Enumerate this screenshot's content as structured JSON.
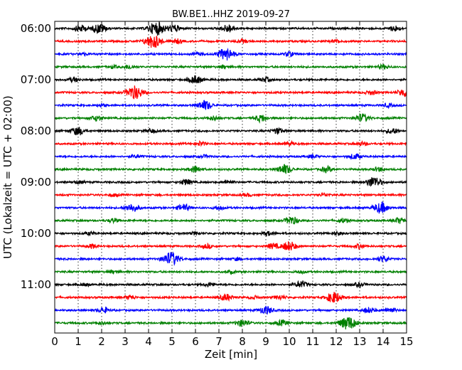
{
  "chart_data": {
    "type": "line",
    "title": "BW.BE1..HHZ 2019-09-27",
    "xlabel": "Zeit  [min]",
    "ylabel": "UTC (Lokalzeit = UTC + 02:00)",
    "xlim": [
      0,
      15
    ],
    "x_ticks": [
      "0",
      "1",
      "2",
      "3",
      "4",
      "5",
      "6",
      "7",
      "8",
      "9",
      "10",
      "11",
      "12",
      "13",
      "14",
      "15"
    ],
    "y_tick_labels": [
      "06:00",
      "07:00",
      "08:00",
      "09:00",
      "10:00",
      "11:00"
    ],
    "y_tick_trace_index": [
      0,
      4,
      8,
      12,
      16,
      20
    ],
    "grid": "vertical dotted",
    "series_colors": [
      "#000000",
      "#ff0000",
      "#0000ff",
      "#008000"
    ],
    "trace_interval_minutes": 15,
    "start_time": "06:00",
    "traces": [
      {
        "start": "06:00",
        "color": "#000000",
        "events": [
          [
            1.1,
            0.5
          ],
          [
            1.9,
            0.7
          ],
          [
            4.35,
            1.0
          ],
          [
            5.1,
            0.5
          ],
          [
            7.4,
            0.6
          ],
          [
            14.5,
            0.4
          ]
        ]
      },
      {
        "start": "06:15",
        "color": "#ff0000",
        "events": [
          [
            4.2,
            1.0
          ],
          [
            5.2,
            0.3
          ],
          [
            8.0,
            0.25
          ],
          [
            12.0,
            0.25
          ]
        ]
      },
      {
        "start": "06:30",
        "color": "#0000ff",
        "events": [
          [
            1.2,
            0.2
          ],
          [
            6.1,
            0.2
          ],
          [
            7.3,
            0.9
          ],
          [
            10.0,
            0.3
          ]
        ]
      },
      {
        "start": "06:45",
        "color": "#008000",
        "events": [
          [
            2.5,
            0.2
          ],
          [
            3.2,
            0.3
          ],
          [
            7.2,
            0.2
          ],
          [
            14.0,
            0.3
          ]
        ]
      },
      {
        "start": "07:00",
        "color": "#000000",
        "events": [
          [
            0.8,
            0.3
          ],
          [
            6.0,
            0.6
          ],
          [
            9.0,
            0.3
          ]
        ]
      },
      {
        "start": "07:15",
        "color": "#ff0000",
        "events": [
          [
            3.4,
            1.0
          ],
          [
            13.5,
            0.3
          ],
          [
            14.9,
            0.6
          ]
        ]
      },
      {
        "start": "07:30",
        "color": "#0000ff",
        "events": [
          [
            2.0,
            0.2
          ],
          [
            6.4,
            0.7
          ],
          [
            14.2,
            0.25
          ]
        ]
      },
      {
        "start": "07:45",
        "color": "#008000",
        "events": [
          [
            1.8,
            0.4
          ],
          [
            6.8,
            0.3
          ],
          [
            8.8,
            0.5
          ],
          [
            13.1,
            0.6
          ]
        ]
      },
      {
        "start": "08:00",
        "color": "#000000",
        "events": [
          [
            1.0,
            0.6
          ],
          [
            4.1,
            0.3
          ],
          [
            9.5,
            0.4
          ],
          [
            14.4,
            0.4
          ]
        ]
      },
      {
        "start": "08:15",
        "color": "#ff0000",
        "events": [
          [
            6.2,
            0.3
          ],
          [
            10.0,
            0.25
          ],
          [
            13.1,
            0.25
          ]
        ]
      },
      {
        "start": "08:30",
        "color": "#0000ff",
        "events": [
          [
            3.5,
            0.2
          ],
          [
            6.4,
            0.2
          ],
          [
            11.0,
            0.25
          ],
          [
            12.8,
            0.4
          ]
        ]
      },
      {
        "start": "08:45",
        "color": "#008000",
        "events": [
          [
            6.0,
            0.5
          ],
          [
            9.8,
            0.7
          ],
          [
            11.6,
            0.4
          ],
          [
            13.8,
            0.3
          ]
        ]
      },
      {
        "start": "09:00",
        "color": "#000000",
        "events": [
          [
            1.0,
            0.2
          ],
          [
            5.6,
            0.4
          ],
          [
            7.4,
            0.3
          ],
          [
            13.6,
            0.8
          ]
        ]
      },
      {
        "start": "09:15",
        "color": "#ff0000",
        "events": [
          [
            2.5,
            0.2
          ],
          [
            8.2,
            0.2
          ],
          [
            11.5,
            0.2
          ]
        ]
      },
      {
        "start": "09:30",
        "color": "#0000ff",
        "events": [
          [
            3.3,
            0.6
          ],
          [
            5.5,
            0.5
          ],
          [
            7.0,
            0.3
          ],
          [
            13.9,
            0.8
          ]
        ]
      },
      {
        "start": "09:45",
        "color": "#008000",
        "events": [
          [
            2.5,
            0.3
          ],
          [
            10.1,
            0.6
          ],
          [
            12.3,
            0.3
          ],
          [
            14.7,
            0.4
          ]
        ]
      },
      {
        "start": "10:00",
        "color": "#000000",
        "events": [
          [
            1.5,
            0.2
          ],
          [
            6.0,
            0.2
          ],
          [
            9.1,
            0.3
          ],
          [
            12.0,
            0.2
          ]
        ]
      },
      {
        "start": "10:15",
        "color": "#ff0000",
        "events": [
          [
            1.6,
            0.3
          ],
          [
            6.5,
            0.3
          ],
          [
            9.3,
            0.4
          ],
          [
            10.0,
            0.7
          ],
          [
            13.0,
            0.3
          ]
        ]
      },
      {
        "start": "10:30",
        "color": "#0000ff",
        "events": [
          [
            4.95,
            1.0
          ],
          [
            7.8,
            0.2
          ],
          [
            14.0,
            0.4
          ]
        ]
      },
      {
        "start": "10:45",
        "color": "#008000",
        "events": [
          [
            2.5,
            0.2
          ],
          [
            7.5,
            0.2
          ],
          [
            10.5,
            0.2
          ]
        ]
      },
      {
        "start": "11:00",
        "color": "#000000",
        "events": [
          [
            1.3,
            0.2
          ],
          [
            6.6,
            0.3
          ],
          [
            10.5,
            0.5
          ],
          [
            13.0,
            0.3
          ]
        ]
      },
      {
        "start": "11:15",
        "color": "#ff0000",
        "events": [
          [
            3.2,
            0.3
          ],
          [
            7.3,
            0.5
          ],
          [
            8.5,
            0.2
          ],
          [
            9.6,
            0.3
          ],
          [
            11.9,
            0.8
          ]
        ]
      },
      {
        "start": "11:30",
        "color": "#0000ff",
        "events": [
          [
            2.1,
            0.4
          ],
          [
            9.0,
            0.6
          ],
          [
            13.4,
            0.4
          ],
          [
            14.3,
            0.4
          ]
        ]
      },
      {
        "start": "11:45",
        "color": "#008000",
        "events": [
          [
            2.0,
            0.2
          ],
          [
            8.0,
            0.5
          ],
          [
            9.7,
            0.4
          ],
          [
            12.5,
            1.0
          ]
        ]
      }
    ]
  }
}
